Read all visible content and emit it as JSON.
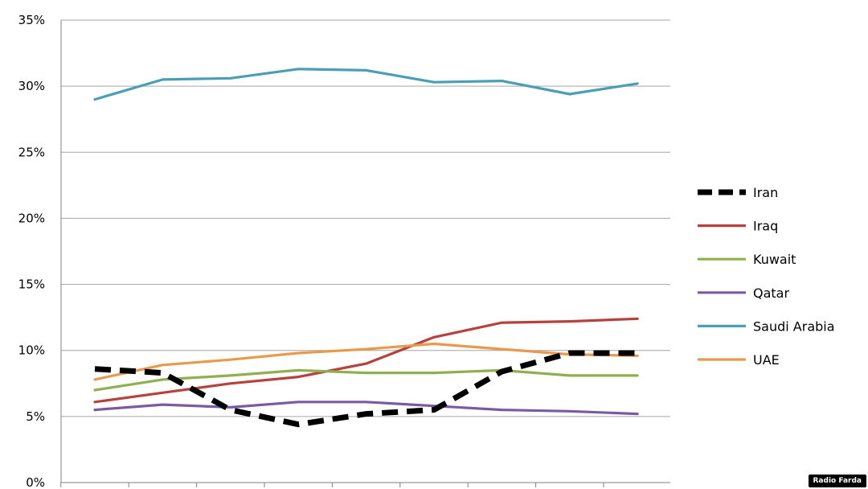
{
  "chart_data": {
    "type": "line",
    "title": "",
    "xlabel": "",
    "ylabel": "",
    "ylim": [
      0,
      35
    ],
    "y_ticks": [
      "0%",
      "5%",
      "10%",
      "15%",
      "20%",
      "25%",
      "30%",
      "35%"
    ],
    "y_tick_values": [
      0,
      5,
      10,
      15,
      20,
      25,
      30,
      35
    ],
    "x": [
      1,
      2,
      3,
      4,
      5,
      6,
      7,
      8,
      9
    ],
    "grid": "horizontal",
    "legend_position": "right",
    "series": [
      {
        "name": "Iran",
        "color": "#000000",
        "dashed": true,
        "values": [
          8.6,
          8.3,
          5.5,
          4.4,
          5.2,
          5.5,
          8.4,
          9.8,
          9.8
        ]
      },
      {
        "name": "Iraq",
        "color": "#b6413d",
        "dashed": false,
        "values": [
          6.1,
          6.8,
          7.5,
          8.0,
          9.0,
          11.0,
          12.1,
          12.2,
          12.4
        ]
      },
      {
        "name": "Kuwait",
        "color": "#8fb04f",
        "dashed": false,
        "values": [
          7.0,
          7.8,
          8.1,
          8.5,
          8.3,
          8.3,
          8.5,
          8.1,
          8.1
        ]
      },
      {
        "name": "Qatar",
        "color": "#7a5ba3",
        "dashed": false,
        "values": [
          5.5,
          5.9,
          5.7,
          6.1,
          6.1,
          5.8,
          5.5,
          5.4,
          5.2
        ]
      },
      {
        "name": "Saudi Arabia",
        "color": "#4a9fb6",
        "dashed": false,
        "values": [
          29.0,
          30.5,
          30.6,
          31.3,
          31.2,
          30.3,
          30.4,
          29.4,
          30.2
        ]
      },
      {
        "name": "UAE",
        "color": "#e89a4c",
        "dashed": false,
        "values": [
          7.8,
          8.9,
          9.3,
          9.8,
          10.1,
          10.5,
          10.1,
          9.7,
          9.6
        ]
      }
    ]
  },
  "watermark": "Radio Farda"
}
